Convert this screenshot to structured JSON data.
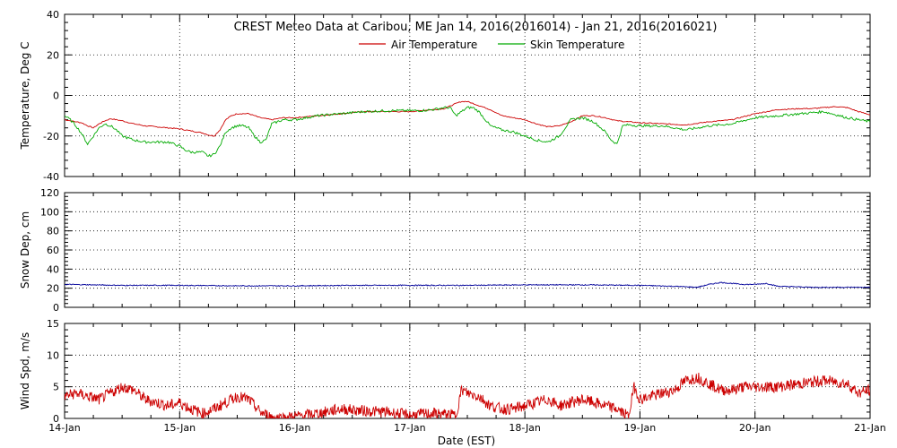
{
  "chart_data": {
    "title": "CREST Meteo Data at Caribou, ME   Jan 14, 2016(2016014) - Jan 21, 2016(2016021)",
    "xlabel": "Date (EST)",
    "x_ticks": [
      "14-Jan",
      "15-Jan",
      "16-Jan",
      "17-Jan",
      "18-Jan",
      "19-Jan",
      "20-Jan",
      "21-Jan"
    ],
    "x_range_days": [
      0,
      7
    ],
    "grid": true,
    "colors": {
      "air": "#cc0000",
      "skin": "#00aa00",
      "snow": "#000099",
      "wind": "#cc0000"
    },
    "panels": [
      {
        "type": "line",
        "ylabel": "Temperature, Deg C",
        "ylim": [
          -40,
          40
        ],
        "yticks": [
          "-40",
          "-20",
          "0",
          "20",
          "40"
        ],
        "legend_placement": "top-center",
        "series": [
          {
            "name": "Air Temperature",
            "color": "#cc0000",
            "x": [
              0,
              0.05,
              0.1,
              0.15,
              0.2,
              0.25,
              0.3,
              0.35,
              0.4,
              0.45,
              0.5,
              0.6,
              0.7,
              0.8,
              0.9,
              1.0,
              1.1,
              1.2,
              1.25,
              1.3,
              1.35,
              1.4,
              1.45,
              1.5,
              1.6,
              1.7,
              1.8,
              1.9,
              2.0,
              2.2,
              2.4,
              2.6,
              2.8,
              3.0,
              3.1,
              3.2,
              3.3,
              3.4,
              3.45,
              3.5,
              3.55,
              3.6,
              3.7,
              3.8,
              3.9,
              4.0,
              4.1,
              4.2,
              4.3,
              4.4,
              4.5,
              4.6,
              4.7,
              4.8,
              4.9,
              5.0,
              5.2,
              5.4,
              5.6,
              5.8,
              6.0,
              6.2,
              6.4,
              6.5,
              6.6,
              6.7,
              6.8,
              6.9,
              7.0
            ],
            "values": [
              -12,
              -12.5,
              -13,
              -13.5,
              -15,
              -16,
              -14,
              -12.5,
              -11.5,
              -12,
              -12.5,
              -14,
              -15,
              -15.5,
              -16,
              -16.5,
              -17.5,
              -18.5,
              -19.5,
              -20,
              -17,
              -12,
              -10,
              -9,
              -9,
              -11,
              -12,
              -11,
              -11,
              -10,
              -9,
              -8,
              -8,
              -8,
              -7.5,
              -7,
              -6.5,
              -4,
              -3,
              -3,
              -4,
              -5,
              -7,
              -10,
              -11,
              -12,
              -14,
              -15.5,
              -15,
              -13,
              -10,
              -10,
              -11,
              -12.5,
              -13,
              -13.5,
              -14,
              -14.5,
              -13,
              -12,
              -9,
              -7,
              -6.5,
              -6.5,
              -6,
              -5.5,
              -6,
              -8,
              -9.5
            ]
          },
          {
            "name": "Skin Temperature",
            "color": "#00aa00",
            "x": [
              0,
              0.05,
              0.1,
              0.15,
              0.2,
              0.25,
              0.3,
              0.35,
              0.4,
              0.45,
              0.5,
              0.6,
              0.7,
              0.8,
              0.9,
              1.0,
              1.05,
              1.1,
              1.15,
              1.2,
              1.25,
              1.3,
              1.35,
              1.4,
              1.45,
              1.5,
              1.55,
              1.6,
              1.65,
              1.7,
              1.75,
              1.8,
              1.9,
              2.0,
              2.2,
              2.4,
              2.6,
              2.8,
              3.0,
              3.1,
              3.2,
              3.3,
              3.35,
              3.4,
              3.45,
              3.5,
              3.55,
              3.6,
              3.7,
              3.8,
              3.9,
              4.0,
              4.1,
              4.2,
              4.3,
              4.4,
              4.5,
              4.6,
              4.7,
              4.75,
              4.8,
              4.85,
              4.9,
              5.0,
              5.2,
              5.4,
              5.6,
              5.8,
              6.0,
              6.2,
              6.4,
              6.6,
              6.8,
              7.0
            ],
            "values": [
              -10,
              -12,
              -15,
              -19,
              -24,
              -20,
              -16,
              -14,
              -15,
              -17,
              -20,
              -22,
              -23,
              -23,
              -23,
              -25,
              -27,
              -28,
              -28,
              -28,
              -30,
              -29,
              -25,
              -18,
              -16,
              -15,
              -15,
              -16,
              -20,
              -23,
              -22,
              -14,
              -12,
              -12,
              -10,
              -9,
              -8,
              -7.5,
              -7.5,
              -7.5,
              -7,
              -6,
              -6,
              -10,
              -8,
              -6,
              -6,
              -8,
              -15,
              -17,
              -18,
              -20,
              -22,
              -23,
              -20,
              -12,
              -11,
              -13,
              -18,
              -22,
              -24,
              -15,
              -14.5,
              -15,
              -15,
              -17,
              -15,
              -14,
              -11,
              -10,
              -9,
              -8,
              -11,
              -13
            ]
          }
        ]
      },
      {
        "type": "line",
        "ylabel": "Snow Dep, cm",
        "ylim": [
          0,
          120
        ],
        "yticks": [
          "0",
          "20",
          "40",
          "60",
          "80",
          "100",
          "120"
        ],
        "series": [
          {
            "color": "#000099",
            "x": [
              0,
              0.5,
              1.0,
              1.5,
              2.0,
              2.5,
              3.0,
              3.5,
              4.0,
              4.5,
              5.0,
              5.3,
              5.5,
              5.6,
              5.7,
              5.8,
              5.9,
              6.0,
              6.1,
              6.2,
              6.5,
              7.0
            ],
            "values": [
              24,
              23,
              23,
              22.5,
              22.5,
              23,
              23,
              23,
              23.5,
              23.5,
              23,
              22,
              21,
              24,
              26,
              25,
              24,
              24,
              25,
              22,
              21,
              21
            ]
          }
        ]
      },
      {
        "type": "line",
        "ylabel": "Wind Spd, m/s",
        "ylim": [
          0,
          15
        ],
        "yticks": [
          "0",
          "5",
          "10",
          "15"
        ],
        "series": [
          {
            "color": "#cc0000",
            "x": [
              0,
              0.1,
              0.2,
              0.3,
              0.4,
              0.5,
              0.6,
              0.7,
              0.8,
              0.9,
              1.0,
              1.1,
              1.2,
              1.3,
              1.4,
              1.5,
              1.6,
              1.7,
              1.8,
              1.9,
              2.0,
              2.2,
              2.4,
              2.6,
              2.8,
              3.0,
              3.2,
              3.4,
              3.45,
              3.5,
              3.6,
              3.7,
              3.8,
              3.9,
              4.0,
              4.1,
              4.2,
              4.3,
              4.4,
              4.5,
              4.6,
              4.7,
              4.8,
              4.9,
              4.95,
              5.0,
              5.1,
              5.2,
              5.3,
              5.4,
              5.5,
              5.6,
              5.7,
              5.8,
              5.9,
              6.0,
              6.2,
              6.4,
              6.6,
              6.8,
              6.9,
              7.0
            ],
            "values": [
              3.5,
              4,
              3.5,
              3,
              4,
              5,
              4.5,
              3,
              2.5,
              2,
              2.5,
              1.5,
              0.8,
              1.5,
              2.5,
              3.5,
              3,
              1,
              0.2,
              0.1,
              0.3,
              0.8,
              1.5,
              1.2,
              1,
              0.5,
              0.8,
              0.5,
              4.5,
              4,
              3.5,
              2,
              1.5,
              1.5,
              2,
              2.5,
              3,
              2,
              2.5,
              3,
              2.5,
              2,
              1.5,
              0.3,
              5,
              3,
              3.5,
              4,
              4.5,
              6,
              6.5,
              5.5,
              4.5,
              4.5,
              5,
              5,
              5,
              5.5,
              6,
              5.5,
              4,
              4.5
            ]
          }
        ]
      }
    ]
  }
}
